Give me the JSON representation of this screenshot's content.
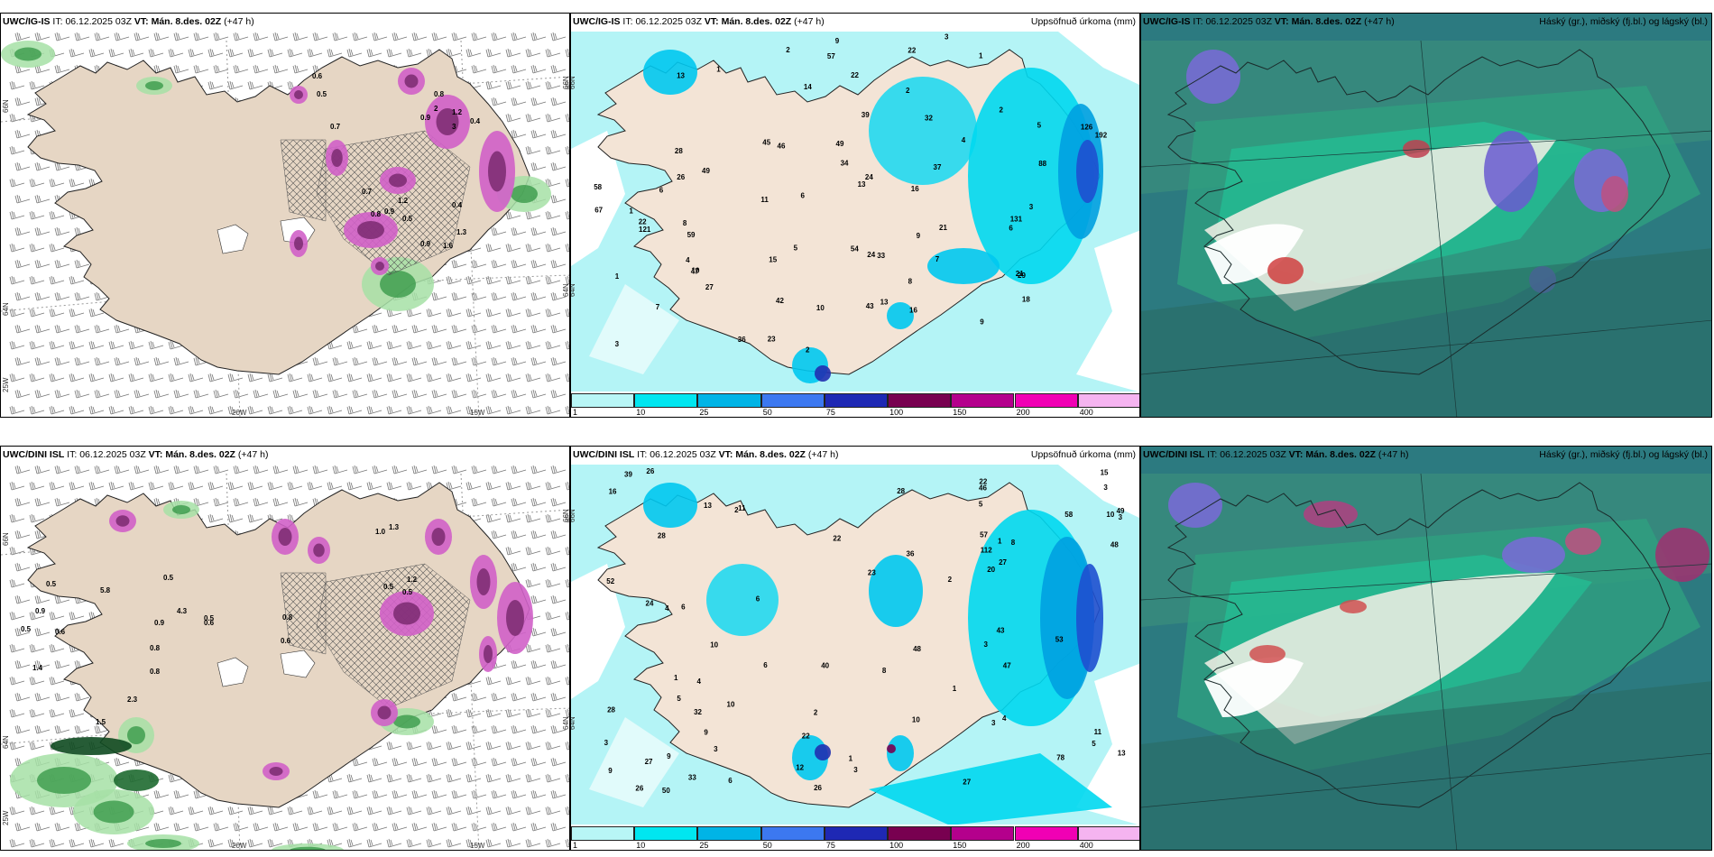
{
  "panels": [
    {
      "model": "UWC/IG-IS",
      "it_label": "IT:",
      "it": "06.12.2025 03Z",
      "vt_label": "VT:",
      "vt": "Mán. 8.des. 02Z",
      "lead": "(+47 h)",
      "right": "",
      "type": "precip_type"
    },
    {
      "model": "UWC/IG-IS",
      "it_label": "IT:",
      "it": "06.12.2025 03Z",
      "vt_label": "VT:",
      "vt": "Mán. 8.des. 02Z",
      "lead": "(+47 h)",
      "right": "Uppsöfnuð úrkoma (mm)",
      "type": "accum"
    },
    {
      "model": "UWC/IG-IS",
      "it_label": "IT:",
      "it": "06.12.2025 03Z",
      "vt_label": "VT:",
      "vt": "Mán. 8.des. 02Z",
      "lead": "(+47 h)",
      "right": "Háský (gr.), miðský (fj.bl.) og lágský (bl.)",
      "type": "cloud"
    },
    {
      "model": "UWC/DINI ISL",
      "it_label": "IT:",
      "it": "06.12.2025 03Z",
      "vt_label": "VT:",
      "vt": "Mán. 8.des. 02Z",
      "lead": "(+47 h)",
      "right": "",
      "type": "precip_type"
    },
    {
      "model": "UWC/DINI ISL",
      "it_label": "IT:",
      "it": "06.12.2025 03Z",
      "vt_label": "VT:",
      "vt": "Mán. 8.des. 02Z",
      "lead": "(+47 h)",
      "right": "Uppsöfnuð úrkoma (mm)",
      "type": "accum"
    },
    {
      "model": "UWC/DINI ISL",
      "it_label": "IT:",
      "it": "06.12.2025 03Z",
      "vt_label": "VT:",
      "vt": "Mán. 8.des. 02Z",
      "lead": "(+47 h)",
      "right": "Háský (gr.), miðský (fj.bl.) og lágský (bl.)",
      "type": "cloud"
    }
  ],
  "axes": {
    "bottom": [
      "20W",
      "15W"
    ],
    "left": [
      "66N",
      "64N",
      "25W"
    ],
    "right": [
      "66N",
      "64N"
    ]
  },
  "colorbar": {
    "labels": [
      "1",
      "10",
      "25",
      "50",
      "75",
      "100",
      "150",
      "200",
      "400"
    ],
    "colors": [
      "#b8f6f6",
      "#00e6f0",
      "#00b4e6",
      "#3c78f0",
      "#1e28b4",
      "#780050",
      "#b4008c",
      "#f000b4",
      "#f5b4f0"
    ]
  },
  "precip_labels_top": [
    "7",
    "1",
    "1",
    "2",
    "24",
    "49",
    "59",
    "10",
    "5",
    "4",
    "1",
    "9",
    "7",
    "13",
    "2",
    "2",
    "18",
    "58",
    "47",
    "23",
    "16",
    "57",
    "14",
    "24",
    "34",
    "42",
    "22",
    "22",
    "39",
    "21",
    "28",
    "27",
    "13",
    "54",
    "29",
    "121",
    "126",
    "16",
    "32",
    "131",
    "192",
    "22",
    "10",
    "8",
    "67",
    "26",
    "9",
    "43",
    "15",
    "8",
    "46",
    "36",
    "49",
    "88",
    "11",
    "33",
    "45",
    "21",
    "13",
    "6",
    "3",
    "3",
    "2",
    "6",
    "5",
    "1",
    "4",
    "37",
    "3",
    "9",
    "6"
  ],
  "precip_labels_bottom": [
    "8",
    "9",
    "2",
    "3",
    "1",
    "49",
    "78",
    "53",
    "52",
    "3",
    "11",
    "5",
    "11",
    "3",
    "2",
    "3",
    "39",
    "40",
    "26",
    "47",
    "26",
    "48",
    "27",
    "27",
    "10",
    "6",
    "3",
    "22",
    "23",
    "22",
    "36",
    "26",
    "28",
    "58",
    "32",
    "13",
    "15",
    "33",
    "48",
    "28",
    "12",
    "13",
    "46",
    "50",
    "9",
    "27",
    "43",
    "57",
    "28",
    "10",
    "6",
    "1",
    "3",
    "9",
    "5",
    "6",
    "4",
    "5",
    "3",
    "6",
    "1",
    "1",
    "4",
    "4",
    "2",
    "112",
    "10",
    "8",
    "10",
    "20",
    "22",
    "24",
    "16"
  ],
  "type_labels_top": [
    "0.6",
    "0.7",
    "0.5",
    "0.8",
    "1.2",
    "0.4",
    "2",
    "3",
    "0.9",
    "1.2",
    "0.5",
    "0.7",
    "0.8",
    "0.9",
    "1.3",
    "0.4",
    "1.6",
    "0.9"
  ],
  "type_labels_bottom": [
    "0.5",
    "0.5",
    "4.3",
    "1.2",
    "0.9",
    "0.5",
    "0.6",
    "5.8",
    "0.9",
    "0.8",
    "0.8",
    "2.3",
    "1.5",
    "1.4",
    "0.6",
    "0.5",
    "0.5",
    "0.5",
    "1.0",
    "1.3",
    "0.8",
    "0.6"
  ]
}
